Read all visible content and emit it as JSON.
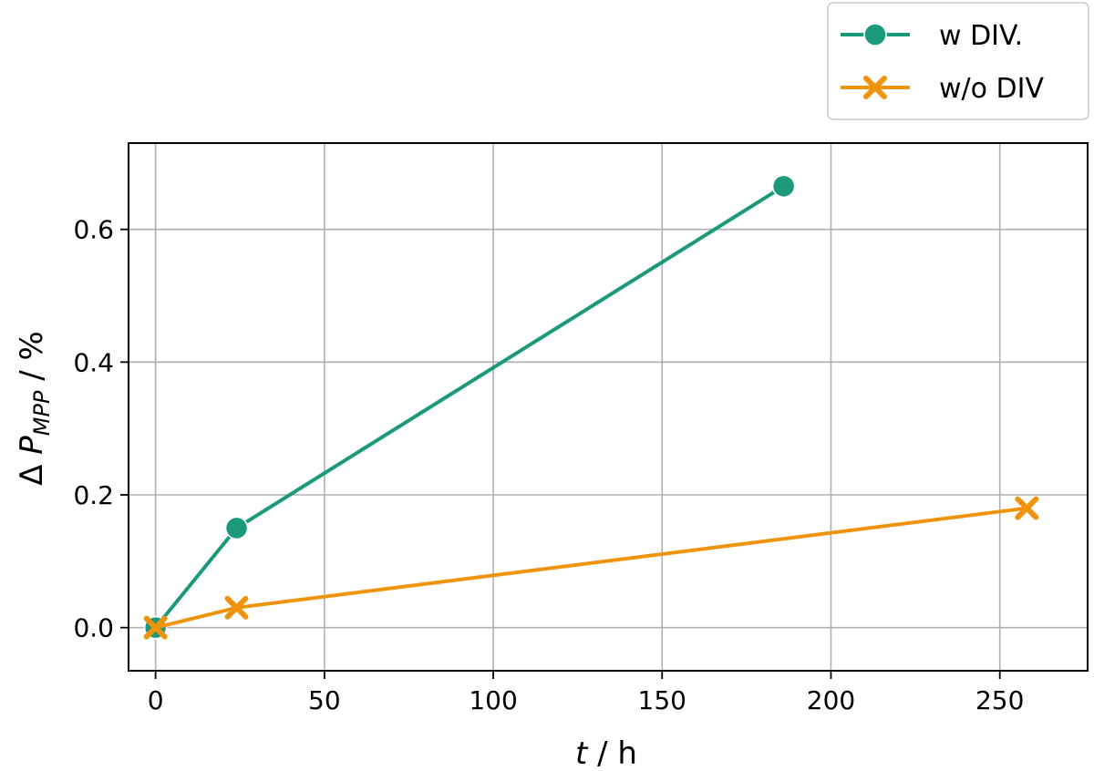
{
  "chart_data": {
    "type": "line",
    "xlabel_var": "t",
    "xlabel_unit": " / h",
    "ylabel_prefix": "Δ ",
    "ylabel_var": "P",
    "ylabel_sub": "MPP",
    "ylabel_unit": " / %",
    "xlim": [
      -8,
      276
    ],
    "ylim": [
      -0.065,
      0.73
    ],
    "x_ticks": [
      0,
      50,
      100,
      150,
      200,
      250
    ],
    "x_tick_labels": [
      "0",
      "50",
      "100",
      "150",
      "200",
      "250"
    ],
    "y_ticks": [
      0.0,
      0.2,
      0.4,
      0.6
    ],
    "y_tick_labels": [
      "0.0",
      "0.2",
      "0.4",
      "0.6"
    ],
    "grid": true,
    "legend_position": "top-right",
    "series": [
      {
        "name": "w DIV.",
        "color": "#1a9a7a",
        "marker": "circle",
        "x": [
          0,
          24,
          186
        ],
        "y": [
          0.0,
          0.15,
          0.665
        ]
      },
      {
        "name": "w/o DIV",
        "color": "#f0930c",
        "marker": "x",
        "x": [
          0,
          24,
          258
        ],
        "y": [
          0.0,
          0.03,
          0.18
        ]
      }
    ]
  }
}
